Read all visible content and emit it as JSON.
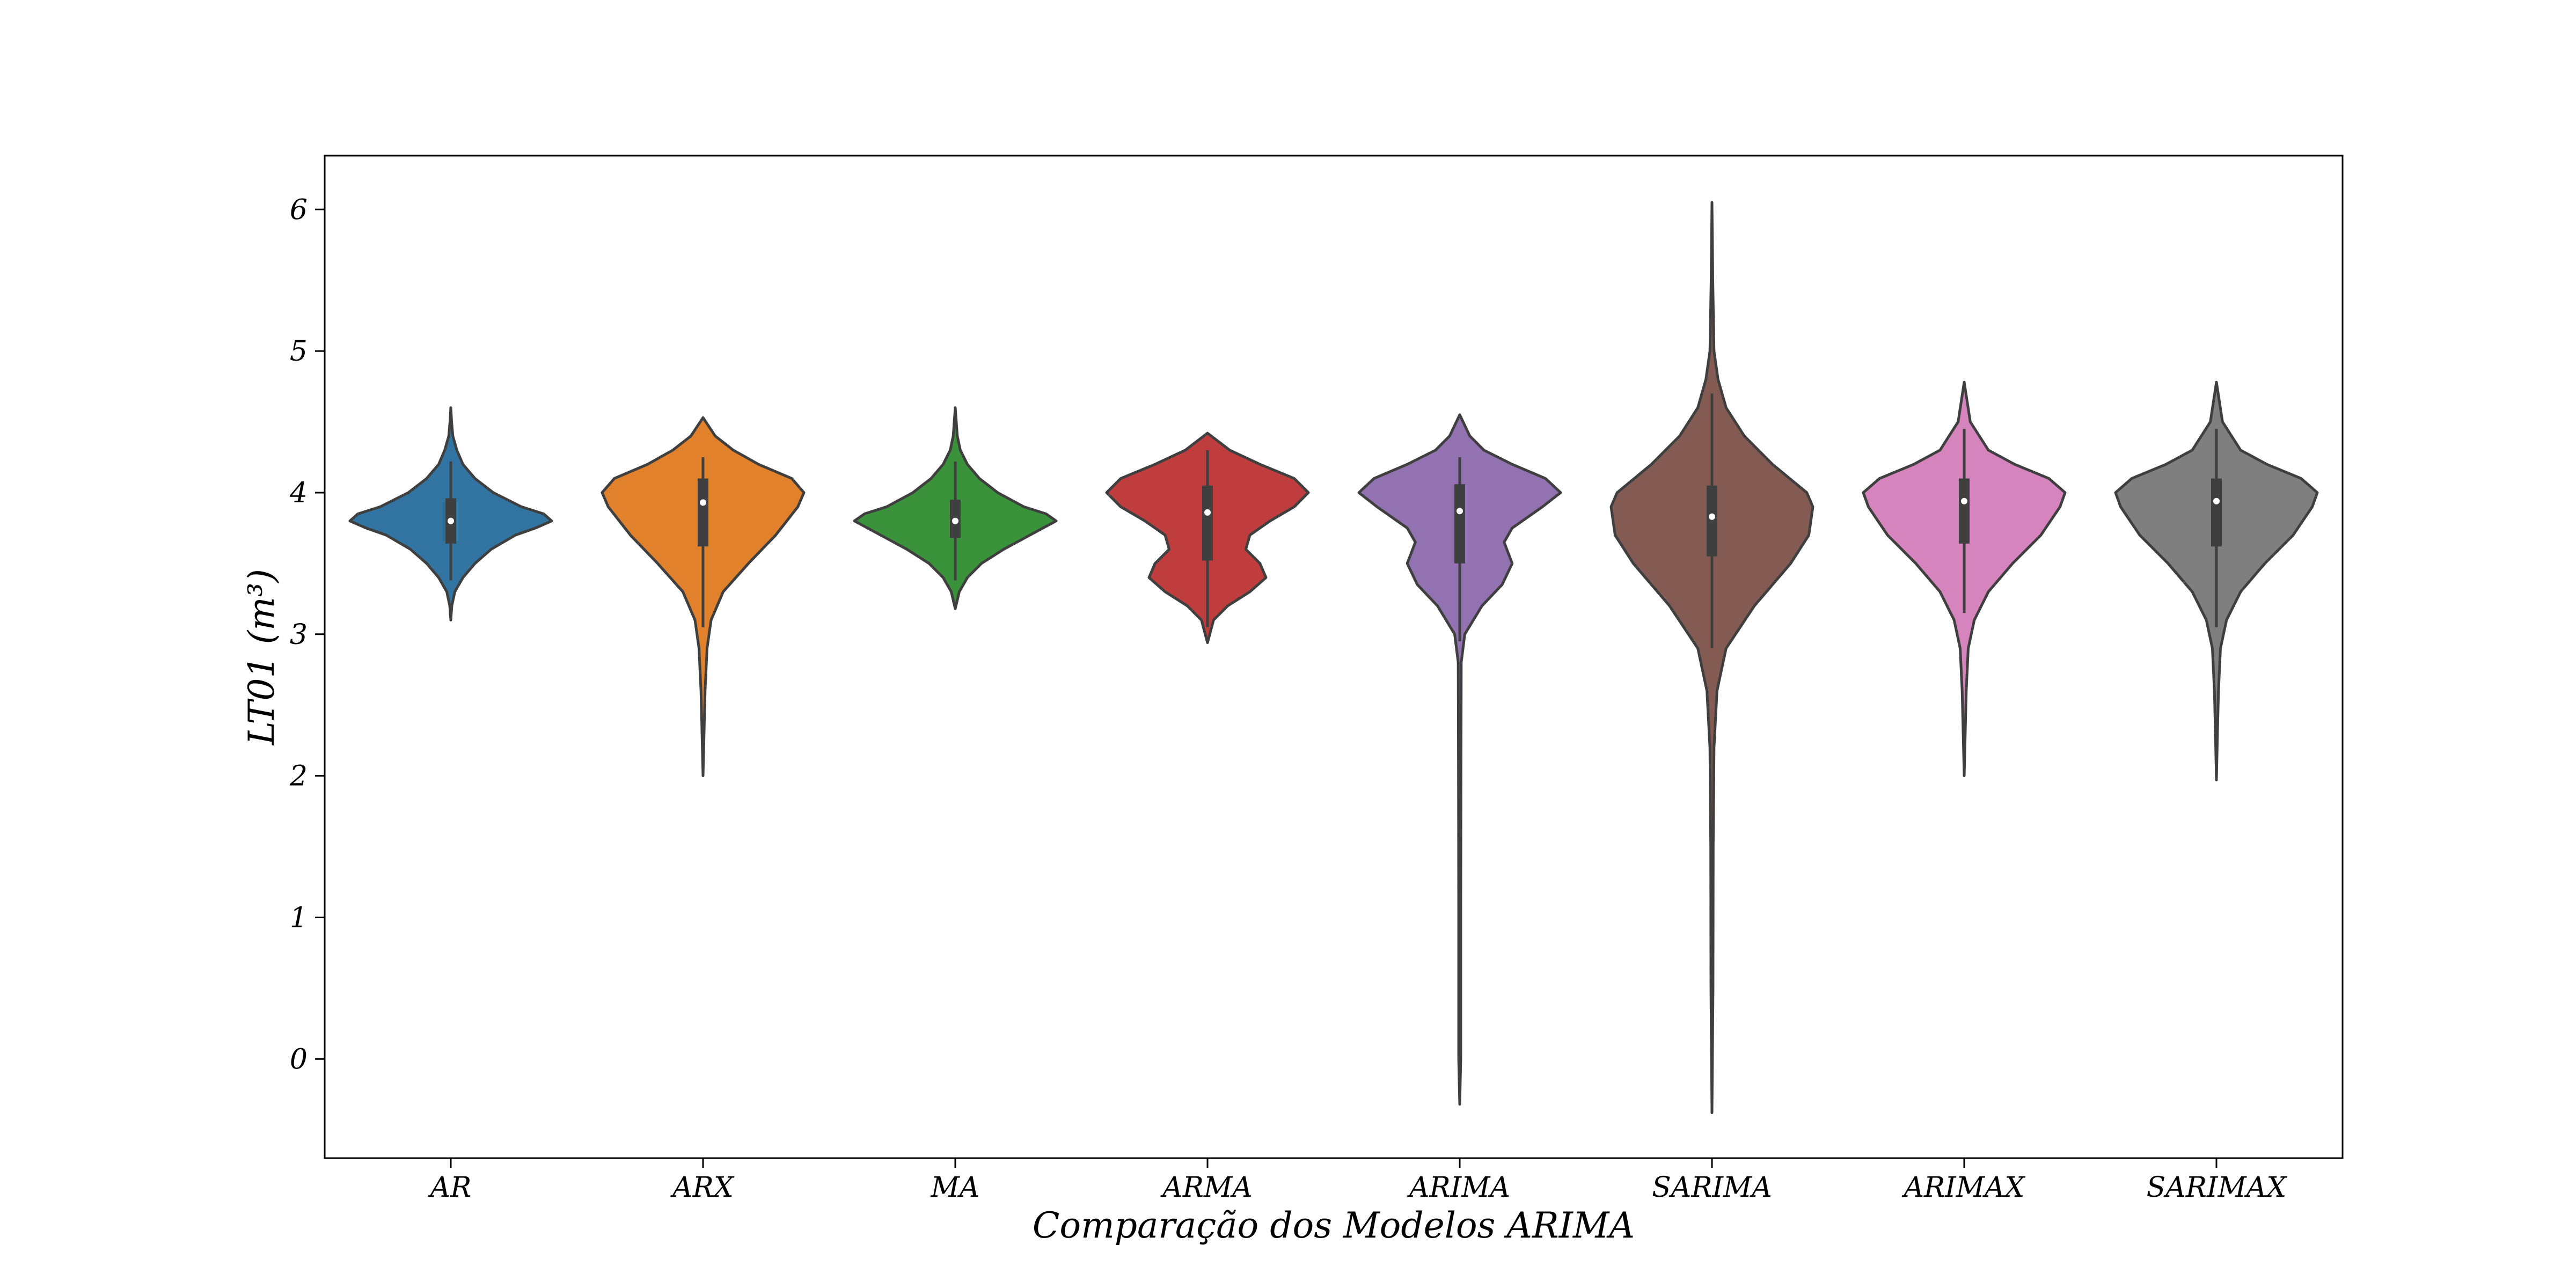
{
  "chart_data": {
    "type": "violin",
    "title": "",
    "xlabel": "Comparação dos Modelos ARIMA",
    "ylabel": "LT01 (m³)",
    "ylim": [
      -0.7,
      6.38
    ],
    "yticks": [
      0,
      1,
      2,
      3,
      4,
      5,
      6
    ],
    "grid": false,
    "legend": "none",
    "categories": [
      "AR",
      "ARX",
      "MA",
      "ARMA",
      "ARIMA",
      "SARIMA",
      "ARIMAX",
      "SARIMAX"
    ],
    "series": [
      {
        "category": "AR",
        "color": "#3274a1",
        "min": 3.1,
        "max": 4.6,
        "q1": 3.64,
        "median": 3.8,
        "q3": 3.96,
        "whisker_low": 3.38,
        "whisker_high": 4.22,
        "profile": [
          [
            3.1,
            0.0
          ],
          [
            3.2,
            0.01
          ],
          [
            3.3,
            0.04
          ],
          [
            3.4,
            0.12
          ],
          [
            3.5,
            0.24
          ],
          [
            3.6,
            0.4
          ],
          [
            3.7,
            0.64
          ],
          [
            3.75,
            0.84
          ],
          [
            3.8,
            1.0
          ],
          [
            3.85,
            0.92
          ],
          [
            3.9,
            0.7
          ],
          [
            4.0,
            0.42
          ],
          [
            4.1,
            0.24
          ],
          [
            4.2,
            0.12
          ],
          [
            4.3,
            0.06
          ],
          [
            4.4,
            0.02
          ],
          [
            4.5,
            0.008
          ],
          [
            4.6,
            0.0
          ]
        ]
      },
      {
        "category": "ARX",
        "color": "#e1812c",
        "min": 2.0,
        "max": 4.53,
        "q1": 3.62,
        "median": 3.93,
        "q3": 4.1,
        "whisker_low": 3.05,
        "whisker_high": 4.25,
        "profile": [
          [
            2.0,
            0.0
          ],
          [
            2.3,
            0.01
          ],
          [
            2.6,
            0.02
          ],
          [
            2.9,
            0.04
          ],
          [
            3.1,
            0.08
          ],
          [
            3.3,
            0.2
          ],
          [
            3.5,
            0.45
          ],
          [
            3.7,
            0.72
          ],
          [
            3.9,
            0.94
          ],
          [
            4.0,
            1.0
          ],
          [
            4.1,
            0.88
          ],
          [
            4.2,
            0.55
          ],
          [
            4.3,
            0.3
          ],
          [
            4.4,
            0.12
          ],
          [
            4.53,
            0.0
          ]
        ]
      },
      {
        "category": "MA",
        "color": "#3a923a",
        "min": 3.18,
        "max": 4.6,
        "q1": 3.68,
        "median": 3.8,
        "q3": 3.95,
        "whisker_low": 3.38,
        "whisker_high": 4.22,
        "profile": [
          [
            3.18,
            0.0
          ],
          [
            3.3,
            0.04
          ],
          [
            3.4,
            0.12
          ],
          [
            3.5,
            0.26
          ],
          [
            3.6,
            0.48
          ],
          [
            3.7,
            0.74
          ],
          [
            3.8,
            1.0
          ],
          [
            3.85,
            0.9
          ],
          [
            3.9,
            0.68
          ],
          [
            4.0,
            0.42
          ],
          [
            4.1,
            0.24
          ],
          [
            4.2,
            0.12
          ],
          [
            4.3,
            0.05
          ],
          [
            4.4,
            0.02
          ],
          [
            4.5,
            0.01
          ],
          [
            4.6,
            0.0
          ]
        ]
      },
      {
        "category": "ARMA",
        "color": "#c03d3e",
        "min": 2.94,
        "max": 4.42,
        "q1": 3.52,
        "median": 3.86,
        "q3": 4.05,
        "whisker_low": 3.05,
        "whisker_high": 4.3,
        "profile": [
          [
            2.94,
            0.0
          ],
          [
            3.1,
            0.06
          ],
          [
            3.2,
            0.2
          ],
          [
            3.3,
            0.42
          ],
          [
            3.4,
            0.58
          ],
          [
            3.5,
            0.52
          ],
          [
            3.6,
            0.38
          ],
          [
            3.7,
            0.42
          ],
          [
            3.8,
            0.62
          ],
          [
            3.9,
            0.86
          ],
          [
            4.0,
            1.0
          ],
          [
            4.1,
            0.86
          ],
          [
            4.2,
            0.52
          ],
          [
            4.3,
            0.22
          ],
          [
            4.42,
            0.0
          ]
        ]
      },
      {
        "category": "ARIMA",
        "color": "#9372b2",
        "min": -0.32,
        "max": 4.55,
        "q1": 3.5,
        "median": 3.87,
        "q3": 4.06,
        "whisker_low": 2.95,
        "whisker_high": 4.25,
        "profile": [
          [
            -0.32,
            0.0
          ],
          [
            0.0,
            0.01
          ],
          [
            1.0,
            0.01
          ],
          [
            2.0,
            0.012
          ],
          [
            2.8,
            0.015
          ],
          [
            3.0,
            0.05
          ],
          [
            3.2,
            0.22
          ],
          [
            3.35,
            0.42
          ],
          [
            3.5,
            0.52
          ],
          [
            3.65,
            0.44
          ],
          [
            3.75,
            0.52
          ],
          [
            3.9,
            0.82
          ],
          [
            4.0,
            1.0
          ],
          [
            4.1,
            0.85
          ],
          [
            4.2,
            0.52
          ],
          [
            4.3,
            0.24
          ],
          [
            4.4,
            0.1
          ],
          [
            4.55,
            0.0
          ]
        ]
      },
      {
        "category": "SARIMA",
        "color": "#845b53",
        "min": -0.38,
        "max": 6.05,
        "q1": 3.55,
        "median": 3.83,
        "q3": 4.05,
        "whisker_low": 2.9,
        "whisker_high": 4.7,
        "profile": [
          [
            -0.38,
            0.0
          ],
          [
            0.5,
            0.01
          ],
          [
            1.5,
            0.012
          ],
          [
            2.2,
            0.02
          ],
          [
            2.6,
            0.05
          ],
          [
            2.9,
            0.14
          ],
          [
            3.2,
            0.42
          ],
          [
            3.5,
            0.78
          ],
          [
            3.7,
            0.96
          ],
          [
            3.9,
            1.0
          ],
          [
            4.0,
            0.94
          ],
          [
            4.2,
            0.6
          ],
          [
            4.4,
            0.32
          ],
          [
            4.6,
            0.14
          ],
          [
            4.8,
            0.06
          ],
          [
            5.0,
            0.02
          ],
          [
            5.5,
            0.008
          ],
          [
            6.05,
            0.0
          ]
        ]
      },
      {
        "category": "ARIMAX",
        "color": "#d684bd",
        "min": 2.0,
        "max": 4.78,
        "q1": 3.64,
        "median": 3.94,
        "q3": 4.1,
        "whisker_low": 3.15,
        "whisker_high": 4.45,
        "profile": [
          [
            2.0,
            0.0
          ],
          [
            2.3,
            0.01
          ],
          [
            2.6,
            0.02
          ],
          [
            2.9,
            0.04
          ],
          [
            3.1,
            0.1
          ],
          [
            3.3,
            0.24
          ],
          [
            3.5,
            0.48
          ],
          [
            3.7,
            0.76
          ],
          [
            3.9,
            0.95
          ],
          [
            4.0,
            1.0
          ],
          [
            4.1,
            0.84
          ],
          [
            4.2,
            0.5
          ],
          [
            4.3,
            0.24
          ],
          [
            4.5,
            0.06
          ],
          [
            4.78,
            0.0
          ]
        ]
      },
      {
        "category": "SARIMAX",
        "color": "#7f7f7f",
        "min": 1.97,
        "max": 4.78,
        "q1": 3.62,
        "median": 3.94,
        "q3": 4.1,
        "whisker_low": 3.05,
        "whisker_high": 4.45,
        "profile": [
          [
            1.97,
            0.0
          ],
          [
            2.3,
            0.01
          ],
          [
            2.6,
            0.02
          ],
          [
            2.9,
            0.04
          ],
          [
            3.1,
            0.1
          ],
          [
            3.3,
            0.24
          ],
          [
            3.5,
            0.48
          ],
          [
            3.7,
            0.76
          ],
          [
            3.9,
            0.95
          ],
          [
            4.0,
            1.0
          ],
          [
            4.1,
            0.84
          ],
          [
            4.2,
            0.5
          ],
          [
            4.3,
            0.24
          ],
          [
            4.5,
            0.06
          ],
          [
            4.78,
            0.0
          ]
        ]
      }
    ]
  }
}
